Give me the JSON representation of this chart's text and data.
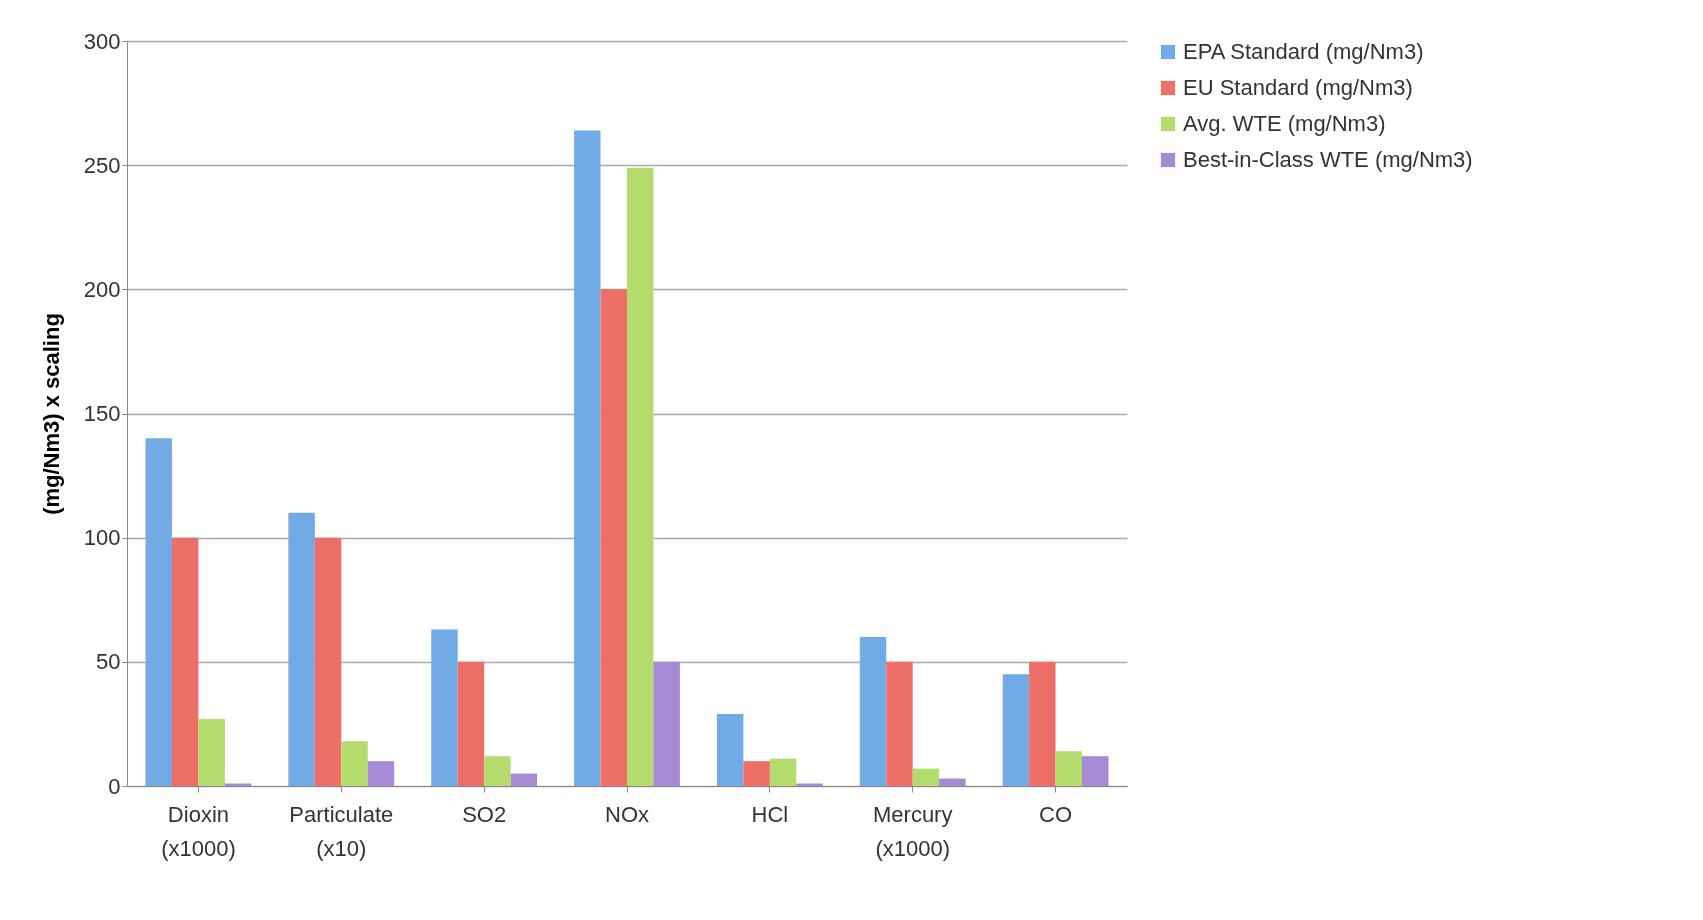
{
  "chart_data": {
    "type": "bar",
    "ylabel": "(mg/Nm3) x scaling",
    "categories": [
      "Dioxin (x1000)",
      "Particulate (x10)",
      "SO2",
      "NOx",
      "HCl",
      "Mercury (x1000)",
      "CO"
    ],
    "series": [
      {
        "name": "EPA Standard (mg/Nm3)",
        "color": "#72aae6",
        "values": [
          140,
          110,
          63,
          264,
          29,
          60,
          45
        ]
      },
      {
        "name": "EU Standard (mg/Nm3)",
        "color": "#ee6f68",
        "values": [
          100,
          100,
          50,
          200,
          10,
          50,
          50
        ]
      },
      {
        "name": "Avg. WTE (mg/Nm3)",
        "color": "#b4dc6c",
        "values": [
          27,
          18,
          12,
          249,
          11,
          7,
          14
        ]
      },
      {
        "name": "Best-in-Class WTE (mg/Nm3)",
        "color": "#a68ad4",
        "values": [
          1,
          10,
          5,
          50,
          1,
          3,
          12
        ]
      }
    ],
    "ylim": [
      0,
      300
    ],
    "yticks": [
      0,
      50,
      100,
      150,
      200,
      250,
      300
    ],
    "grid": "y",
    "legend": "right"
  }
}
